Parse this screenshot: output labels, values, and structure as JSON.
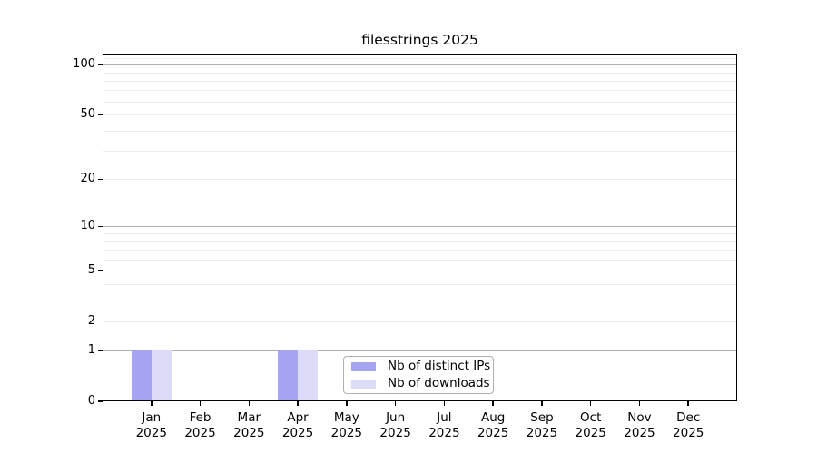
{
  "chart_data": {
    "type": "bar",
    "title": "filesstrings 2025",
    "categories": [
      "Jan 2025",
      "Feb 2025",
      "Mar 2025",
      "Apr 2025",
      "May 2025",
      "Jun 2025",
      "Jul 2025",
      "Aug 2025",
      "Sep 2025",
      "Oct 2025",
      "Nov 2025",
      "Dec 2025"
    ],
    "series": [
      {
        "name": "Nb of distinct IPs",
        "color": "#a5a5f1",
        "values": [
          1,
          0,
          0,
          1,
          0,
          0,
          0,
          0,
          0,
          0,
          0,
          0
        ]
      },
      {
        "name": "Nb of downloads",
        "color": "#dcdcf8",
        "values": [
          1,
          0,
          0,
          1,
          0,
          0,
          0,
          0,
          0,
          0,
          0,
          0
        ]
      }
    ],
    "xlabel": "",
    "ylabel": "",
    "yscale": "log1p",
    "ylim": [
      0,
      115
    ],
    "yticks": [
      0,
      1,
      2,
      5,
      10,
      20,
      50,
      100
    ],
    "major_gridlines": [
      1,
      10,
      100
    ],
    "minor_gridlines": [
      2,
      3,
      4,
      5,
      6,
      7,
      8,
      9,
      20,
      30,
      40,
      50,
      60,
      70,
      80,
      90,
      110
    ],
    "grid": "on",
    "legend_position": "lower center"
  },
  "colors": {
    "major_grid": "#b0b0b0",
    "minor_grid": "#ececec",
    "axis": "#000000",
    "background": "#ffffff"
  }
}
